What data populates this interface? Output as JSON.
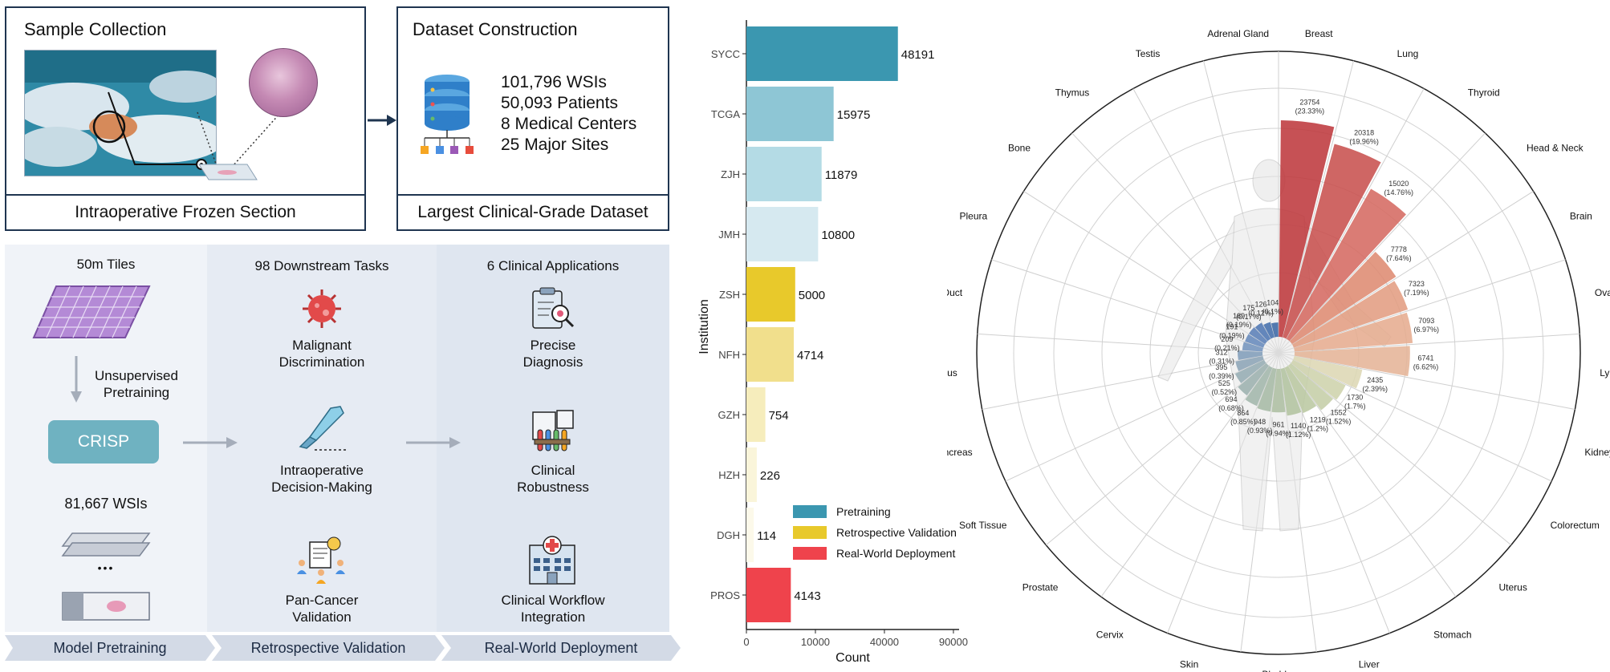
{
  "left": {
    "sample_collection": {
      "title": "Sample Collection",
      "caption": "Intraoperative Frozen Section"
    },
    "dataset_construction": {
      "title": "Dataset Construction",
      "stats": [
        "101,796 WSIs",
        "50,093 Patients",
        "8 Medical Centers",
        "25 Major Sites"
      ],
      "caption": "Largest Clinical-Grade Dataset"
    },
    "pretraining": {
      "tiles_label": "50m Tiles",
      "arrow_label_1": "Unsupervised",
      "arrow_label_2": "Pretraining",
      "model_name": "CRISP",
      "wsi_count": "81,667 WSIs",
      "ellipsis": "•••"
    },
    "downstream": {
      "title": "98 Downstream Tasks",
      "items": [
        {
          "line1": "Malignant",
          "line2": "Discrimination"
        },
        {
          "line1": "Intraoperative",
          "line2": "Decision-Making"
        },
        {
          "line1": "Pan-Cancer",
          "line2": "Validation"
        }
      ]
    },
    "applications": {
      "title": "6 Clinical Applications",
      "items": [
        {
          "line1": "Precise",
          "line2": "Diagnosis"
        },
        {
          "line1": "Clinical",
          "line2": "Robustness"
        },
        {
          "line1": "Clinical Workflow",
          "line2": "Integration"
        }
      ]
    },
    "stages": [
      "Model Pretraining",
      "Retrospective Validation",
      "Real-World Deployment"
    ]
  },
  "chart_data": [
    {
      "type": "bar",
      "orientation": "horizontal",
      "categories": [
        "SYCC",
        "TCGA",
        "ZJH",
        "JMH",
        "ZSH",
        "NFH",
        "GZH",
        "HZH",
        "DGH",
        "PROS"
      ],
      "values": [
        48191,
        15975,
        11879,
        10800,
        5000,
        4714,
        754,
        226,
        114,
        4143
      ],
      "bar_colors": [
        "#3b97b0",
        "#8ec6d5",
        "#b4dbe5",
        "#d6e9f0",
        "#e8c92b",
        "#f1df8c",
        "#f6edbc",
        "#faf5da",
        "#fcf9ea",
        "#ef434c"
      ],
      "xlabel": "Count",
      "ylabel": "Institution",
      "xlim": [
        0,
        95000
      ],
      "xticks": [
        0,
        10000,
        40000,
        90000
      ],
      "xtick_labels": [
        "0",
        "10000",
        "40000",
        "90000"
      ],
      "scale": "sqrt",
      "legend": {
        "position": "bottom-right",
        "entries": [
          {
            "label": "Pretraining",
            "color": "#3b97b0"
          },
          {
            "label": "Retrospective Validation",
            "color": "#e8c92b"
          },
          {
            "label": "Real-World Deployment",
            "color": "#ef434c"
          }
        ]
      }
    },
    {
      "type": "bar",
      "orientation": "radial",
      "categories": [
        "Breast",
        "Lung",
        "Thyroid",
        "Head & Neck",
        "Brain",
        "Ovary",
        "Lymph Node",
        "Kidney",
        "Colorectum",
        "Uterus",
        "Stomach",
        "Liver",
        "Bladder",
        "Skin",
        "Cervix",
        "Prostate",
        "Soft Tissue",
        "Pancreas",
        "Esophagus",
        "Bile Duct",
        "Pleura",
        "Bone",
        "Thymus",
        "Testis",
        "Adrenal Gland"
      ],
      "values": [
        23754,
        20318,
        15020,
        7778,
        7323,
        7093,
        6741,
        2435,
        1730,
        1552,
        1219,
        1140,
        961,
        948,
        864,
        694,
        525,
        395,
        312,
        209,
        191,
        189,
        175,
        126,
        104
      ],
      "value_labels": [
        "(23.33%)",
        "(19.96%)",
        "(14.76%)",
        "(7.64%)",
        "(7.19%)",
        "(6.97%)",
        "(6.62%)",
        "(2.39%)",
        "(1.7%)",
        "(1.52%)",
        "(1.2%)",
        "(1.12%)",
        "(0.94%)",
        "(0.93%)",
        "(0.85%)",
        "(0.68%)",
        "(0.52%)",
        "(0.39%)",
        "(0.31%)",
        "(0.21%)",
        "(0.19%)",
        "(0.19%)",
        "(0.17%)",
        "(0.12%)",
        "(0.1%)"
      ],
      "colors": [
        "#bf3a3e",
        "#c9514f",
        "#d66b62",
        "#df8b73",
        "#e39e82",
        "#e6ad90",
        "#e5b598",
        "#ddd8b4",
        "#cfd3ad",
        "#c5cfa8",
        "#bbc9a2",
        "#b3c4a1",
        "#aebfa3",
        "#a8bba7",
        "#a3b7ac",
        "#9db2b0",
        "#97adb4",
        "#8ea5b7",
        "#829ebb",
        "#7595be",
        "#688bbd",
        "#5c81b9",
        "#5078b4",
        "#4570ad",
        "#3e69a6"
      ],
      "grid": true
    }
  ]
}
